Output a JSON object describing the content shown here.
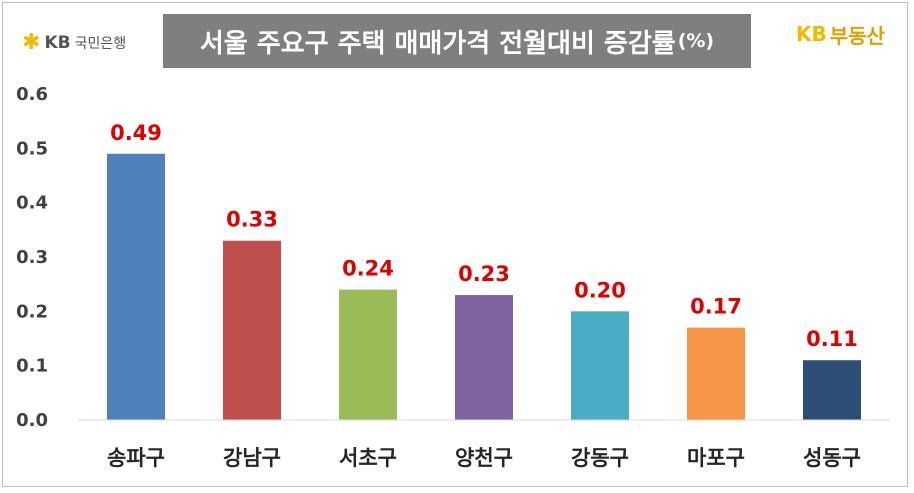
{
  "header": {
    "title": "서울 주요구 주택 매매가격 전월대비 증감률",
    "title_unit": "(%)",
    "logo_left_symbol": "✱",
    "logo_left_brand": "KB",
    "logo_left_name": "국민은행",
    "logo_right_brand": "KB",
    "logo_right_name": "부동산"
  },
  "chart_data": {
    "type": "bar",
    "title": "서울 주요구 주택 매매가격 전월대비 증감률(%)",
    "xlabel": "",
    "ylabel": "",
    "categories": [
      "송파구",
      "강남구",
      "서초구",
      "양천구",
      "강동구",
      "마포구",
      "성동구"
    ],
    "values": [
      0.49,
      0.33,
      0.24,
      0.23,
      0.2,
      0.17,
      0.11
    ],
    "value_labels": [
      "0.49",
      "0.33",
      "0.24",
      "0.23",
      "0.20",
      "0.17",
      "0.11"
    ],
    "colors": [
      "#4f81bd",
      "#c0504d",
      "#9bbb59",
      "#8064a2",
      "#4bacc6",
      "#f79646",
      "#2c4d75"
    ],
    "ylim": [
      0,
      0.6
    ],
    "yticks": [
      0.0,
      0.1,
      0.2,
      0.3,
      0.4,
      0.5,
      0.6
    ],
    "ytick_labels": [
      "0.0",
      "0.1",
      "0.2",
      "0.3",
      "0.4",
      "0.5",
      "0.6"
    ],
    "grid": false,
    "legend": "none",
    "label_color": "#e00000"
  }
}
